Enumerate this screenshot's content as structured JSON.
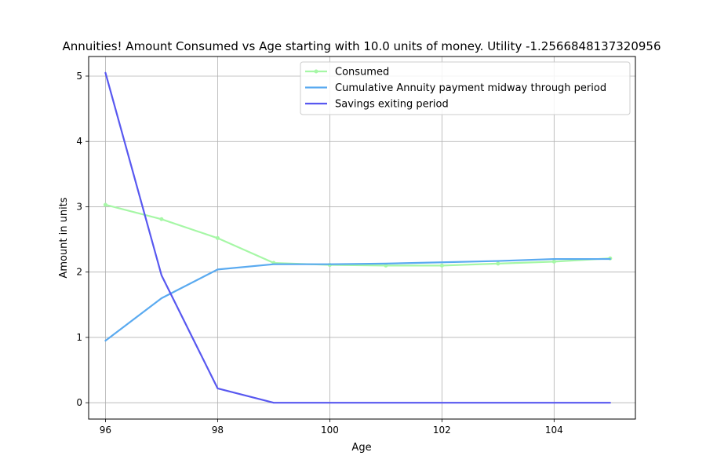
{
  "chart_data": {
    "type": "line",
    "title": "Annuities! Amount Consumed vs Age starting with 10.0 units of money. Utility -1.2566848137320956",
    "xlabel": "Age",
    "ylabel": "Amount in units",
    "xlim": [
      95.7,
      105.45
    ],
    "ylim": [
      -0.25,
      5.3
    ],
    "x_ticks": [
      96,
      98,
      100,
      102,
      104
    ],
    "y_ticks": [
      0,
      1,
      2,
      3,
      4,
      5
    ],
    "grid": true,
    "legend_position": "top-right",
    "x": [
      96,
      97,
      98,
      99,
      100,
      101,
      102,
      103,
      104,
      105
    ],
    "series": [
      {
        "name": "Consumed",
        "color": "#a6f7a6",
        "marker": true,
        "values": [
          3.03,
          2.81,
          2.52,
          2.14,
          2.11,
          2.1,
          2.1,
          2.13,
          2.16,
          2.21
        ]
      },
      {
        "name": "Cumulative Annuity payment midway through period",
        "color": "#5aaaf0",
        "marker": false,
        "values": [
          0.95,
          1.6,
          2.04,
          2.12,
          2.12,
          2.13,
          2.15,
          2.17,
          2.2,
          2.2
        ]
      },
      {
        "name": "Savings exiting period",
        "color": "#5858f0",
        "marker": false,
        "values": [
          5.05,
          1.95,
          0.22,
          0.0,
          0.0,
          0.0,
          0.0,
          0.0,
          0.0,
          0.0
        ]
      }
    ]
  }
}
